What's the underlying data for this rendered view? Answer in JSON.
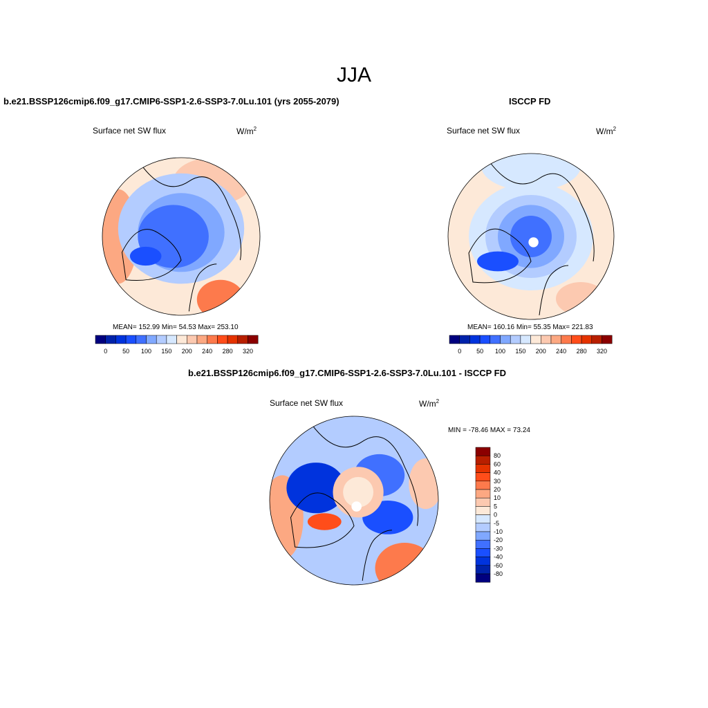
{
  "figure_title": "JJA",
  "colors": [
    "#00007f",
    "#0022aa",
    "#0033dd",
    "#1a4fff",
    "#4070ff",
    "#80a8ff",
    "#b3ccff",
    "#d6e8ff",
    "#fde9d8",
    "#fcc9b0",
    "#fca882",
    "#fd7a4c",
    "#ff4d1a",
    "#e53300",
    "#b81f00",
    "#8b0000"
  ],
  "chart_data": [
    {
      "type": "heatmap",
      "projection": "north polar stereographic",
      "title": "b.e21.BSSP126cmip6.f09_g17.CMIP6-SSP1-2.6-SSP3-7.0Lu.101 (yrs 2055-2079)",
      "left_label": "Surface net SW flux",
      "units_label": "W/m",
      "units_sup": "2",
      "stats": "MEAN= 152.99  Min=  54.53  Max= 253.10",
      "mean": 152.99,
      "min": 54.53,
      "max": 253.1,
      "colorbar_labels": [
        "0",
        "50",
        "100",
        "150",
        "200",
        "240",
        "280",
        "320"
      ]
    },
    {
      "type": "heatmap",
      "projection": "north polar stereographic",
      "title": "ISCCP FD",
      "left_label": "Surface net SW flux",
      "units_label": "W/m",
      "units_sup": "2",
      "stats": "MEAN= 160.16  Min=  55.35  Max= 221.83",
      "mean": 160.16,
      "min": 55.35,
      "max": 221.83,
      "colorbar_labels": [
        "0",
        "50",
        "100",
        "150",
        "200",
        "240",
        "280",
        "320"
      ]
    },
    {
      "type": "heatmap",
      "projection": "north polar stereographic",
      "title": "b.e21.BSSP126cmip6.f09_g17.CMIP6-SSP1-2.6-SSP3-7.0Lu.101 - ISCCP FD",
      "left_label": "Surface net SW flux",
      "units_label": "W/m",
      "units_sup": "2",
      "stats": "MIN = -78.46 MAX =  73.24",
      "min": -78.46,
      "max": 73.24,
      "colorbar_labels": [
        "80",
        "60",
        "40",
        "30",
        "20",
        "10",
        "5",
        "0",
        "-5",
        "-10",
        "-20",
        "-30",
        "-40",
        "-60",
        "-80"
      ]
    }
  ]
}
